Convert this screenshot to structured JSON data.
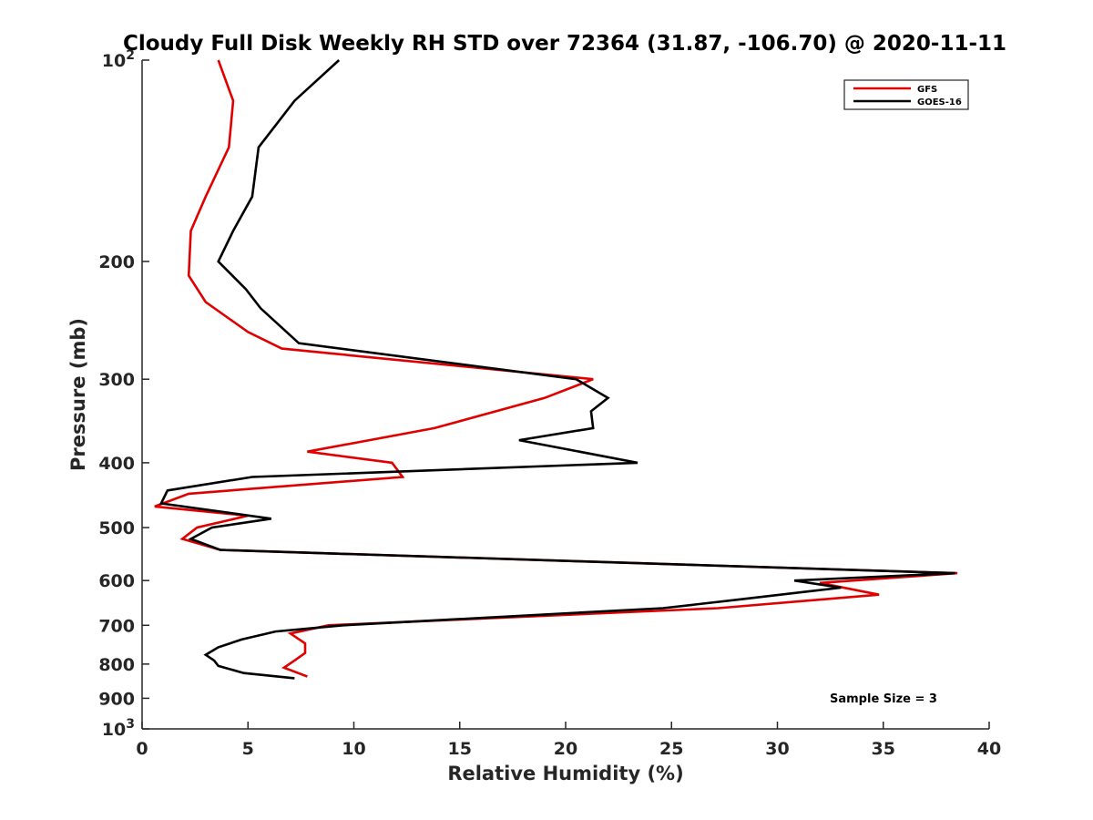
{
  "chart_data": {
    "type": "line",
    "title": "Cloudy Full Disk Weekly RH STD over 72364 (31.87, -106.70) @ 2020-11-11",
    "xlabel": "Relative Humidity (%)",
    "ylabel": "Pressure (mb)",
    "xlim": [
      0,
      40
    ],
    "ylim": [
      100,
      1000
    ],
    "y_scale": "log",
    "y_reversed": true,
    "grid": false,
    "legend_position": "top-right",
    "x_ticks": [
      {
        "value": 0,
        "label": "0"
      },
      {
        "value": 5,
        "label": "5"
      },
      {
        "value": 10,
        "label": "10"
      },
      {
        "value": 15,
        "label": "15"
      },
      {
        "value": 20,
        "label": "20"
      },
      {
        "value": 25,
        "label": "25"
      },
      {
        "value": 30,
        "label": "30"
      },
      {
        "value": 35,
        "label": "35"
      },
      {
        "value": 40,
        "label": "40"
      }
    ],
    "y_ticks": [
      {
        "value": 100,
        "base": "10",
        "exp": "2"
      },
      {
        "value": 200,
        "label": "200"
      },
      {
        "value": 300,
        "label": "300"
      },
      {
        "value": 400,
        "label": "400"
      },
      {
        "value": 500,
        "label": "500"
      },
      {
        "value": 600,
        "label": "600"
      },
      {
        "value": 700,
        "label": "700"
      },
      {
        "value": 800,
        "label": "800"
      },
      {
        "value": 900,
        "label": "900"
      },
      {
        "value": 1000,
        "base": "10",
        "exp": "3"
      }
    ],
    "series": [
      {
        "name": "GFS",
        "color": "#e00000",
        "points": [
          [
            3.6,
            100
          ],
          [
            4.3,
            115
          ],
          [
            4.1,
            135
          ],
          [
            3.0,
            160
          ],
          [
            2.3,
            180
          ],
          [
            2.2,
            210
          ],
          [
            3.0,
            230
          ],
          [
            5.0,
            255
          ],
          [
            6.6,
            270
          ],
          [
            21.3,
            300
          ],
          [
            19.0,
            320
          ],
          [
            13.8,
            355
          ],
          [
            7.8,
            385
          ],
          [
            11.8,
            400
          ],
          [
            12.3,
            420
          ],
          [
            2.2,
            445
          ],
          [
            0.6,
            465
          ],
          [
            5.0,
            480
          ],
          [
            2.6,
            500
          ],
          [
            1.9,
            520
          ],
          [
            3.7,
            540
          ],
          [
            38.5,
            585
          ],
          [
            32.0,
            605
          ],
          [
            34.8,
            630
          ],
          [
            27.2,
            660
          ],
          [
            8.8,
            700
          ],
          [
            7.0,
            720
          ],
          [
            7.7,
            745
          ],
          [
            7.7,
            770
          ],
          [
            7.2,
            790
          ],
          [
            6.7,
            810
          ],
          [
            7.8,
            835
          ]
        ]
      },
      {
        "name": "GOES-16",
        "color": "#000000",
        "points": [
          [
            9.3,
            100
          ],
          [
            7.2,
            115
          ],
          [
            5.5,
            135
          ],
          [
            5.2,
            160
          ],
          [
            4.3,
            180
          ],
          [
            3.6,
            200
          ],
          [
            4.9,
            220
          ],
          [
            5.6,
            235
          ],
          [
            7.4,
            265
          ],
          [
            20.5,
            300
          ],
          [
            22.0,
            320
          ],
          [
            21.2,
            335
          ],
          [
            21.3,
            355
          ],
          [
            17.8,
            370
          ],
          [
            23.4,
            400
          ],
          [
            5.2,
            420
          ],
          [
            1.2,
            440
          ],
          [
            0.9,
            460
          ],
          [
            6.1,
            485
          ],
          [
            3.3,
            500
          ],
          [
            2.3,
            520
          ],
          [
            3.7,
            540
          ],
          [
            38.4,
            585
          ],
          [
            30.8,
            600
          ],
          [
            33.0,
            615
          ],
          [
            28.3,
            640
          ],
          [
            24.6,
            660
          ],
          [
            9.5,
            700
          ],
          [
            6.3,
            715
          ],
          [
            4.7,
            735
          ],
          [
            3.6,
            755
          ],
          [
            3.0,
            775
          ],
          [
            3.4,
            790
          ],
          [
            3.6,
            805
          ],
          [
            4.8,
            825
          ],
          [
            7.2,
            840
          ]
        ]
      }
    ],
    "annotations": [
      {
        "text": "Sample Size = 3"
      }
    ]
  }
}
